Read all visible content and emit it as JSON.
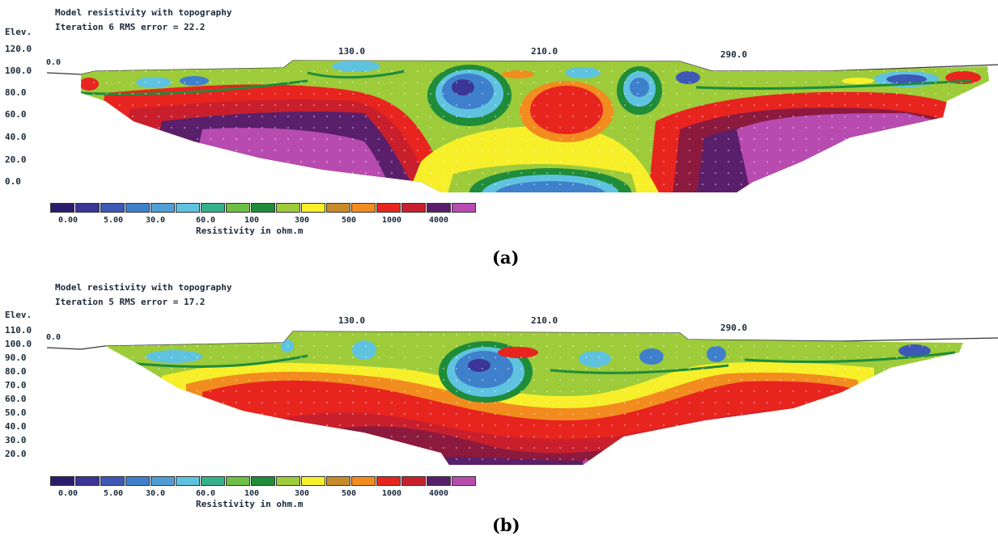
{
  "panels": [
    {
      "id": "a",
      "title_line1": "Model resistivity with topography",
      "title_line2": "Iteration 6 RMS error = 22.2",
      "elev_label": "Elev.",
      "y_ticks": [
        "120.0",
        "100.0",
        "80.0",
        "60.0",
        "40.0",
        "20.0",
        "0.0"
      ],
      "x_ticks": [
        "130.0",
        "210.0",
        "290.0"
      ],
      "x_start": "0.0",
      "legend_unit": "Resistivity in ohm.m",
      "caption": "(a)"
    },
    {
      "id": "b",
      "title_line1": "Model resistivity with topography",
      "title_line2": "Iteration 5 RMS error = 17.2",
      "elev_label": "Elev.",
      "y_ticks": [
        "110.0",
        "100.0",
        "90.0",
        "80.0",
        "70.0",
        "60.0",
        "50.0",
        "40.0",
        "30.0",
        "20.0"
      ],
      "x_ticks": [
        "130.0",
        "210.0",
        "290.0"
      ],
      "x_start": "0.0",
      "legend_unit": "Resistivity in ohm.m",
      "caption": "(b)"
    }
  ],
  "legend": {
    "labels": [
      "0.00",
      "5.00",
      "30.0",
      "60.0",
      "100",
      "300",
      "500",
      "1000",
      "4000"
    ],
    "colors": [
      "#2b1d6e",
      "#3a3596",
      "#3e58b8",
      "#3f80cc",
      "#5fc3e0",
      "#37b08c",
      "#6dbf45",
      "#1f8c3a",
      "#9dcb3a",
      "#f6ef2a",
      "#f28c1f",
      "#e8241f",
      "#c91f2d",
      "#8c1a3e",
      "#5a1f6b",
      "#b84bb0"
    ]
  }
}
